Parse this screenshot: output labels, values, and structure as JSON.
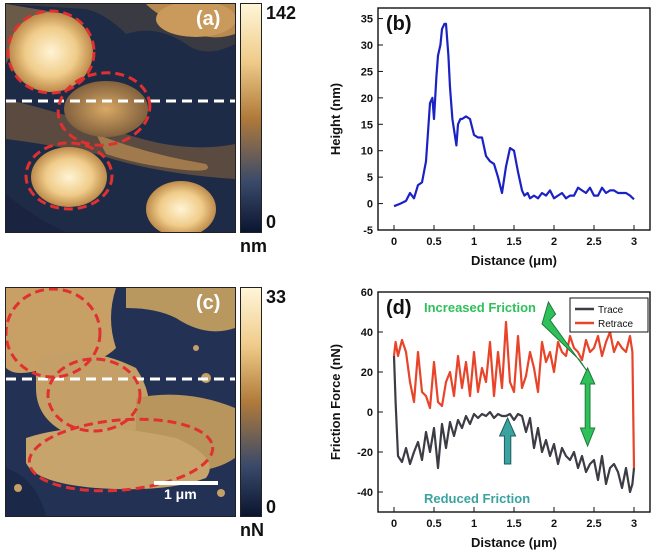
{
  "panel_a": {
    "label": "(a)",
    "colorbar_max": "142",
    "colorbar_min": "0",
    "colorbar_unit": "nm"
  },
  "panel_c": {
    "label": "(c)",
    "colorbar_max": "33",
    "colorbar_min": "0",
    "colorbar_unit": "nN",
    "scalebar": "1 μm"
  },
  "colors": {
    "colormap_low": "#0b1530",
    "colormap_mid": "#b07a3a",
    "colormap_high": "#fff5d8",
    "circle": "#e03030",
    "dashed_line": "#ffffff",
    "height_line": "#1a22c4",
    "trace": "#3c3c44",
    "retrace": "#e8442a",
    "arrow_green": "#2ec15a",
    "arrow_teal": "#3aa3a0"
  },
  "chart_data": [
    {
      "type": "line",
      "panel_label": "(b)",
      "xlabel": "Distance (μm)",
      "ylabel": "Height (nm)",
      "xlim": [
        -0.2,
        3.2
      ],
      "ylim": [
        -5,
        37
      ],
      "xticks": [
        "0",
        "0.5",
        "1",
        "1.5",
        "2",
        "2.5",
        "3"
      ],
      "yticks": [
        "-5",
        "0",
        "5",
        "10",
        "15",
        "20",
        "25",
        "30",
        "35"
      ],
      "series": [
        {
          "x": [
            0,
            0.08,
            0.15,
            0.2,
            0.25,
            0.3,
            0.35,
            0.4,
            0.45,
            0.48,
            0.5,
            0.53,
            0.55,
            0.58,
            0.6,
            0.63,
            0.65,
            0.68,
            0.7,
            0.73,
            0.75,
            0.78,
            0.8,
            0.83,
            0.85,
            0.9,
            0.95,
            1.0,
            1.05,
            1.1,
            1.15,
            1.2,
            1.25,
            1.3,
            1.35,
            1.4,
            1.45,
            1.5,
            1.55,
            1.6,
            1.63,
            1.67,
            1.7,
            1.75,
            1.8,
            1.85,
            1.9,
            1.95,
            2.0,
            2.05,
            2.1,
            2.15,
            2.2,
            2.25,
            2.3,
            2.35,
            2.4,
            2.45,
            2.5,
            2.55,
            2.6,
            2.65,
            2.7,
            2.75,
            2.8,
            2.85,
            2.9,
            2.95,
            3.0
          ],
          "y": [
            -0.5,
            0,
            0.5,
            2,
            1,
            3.5,
            4,
            8,
            19,
            20,
            16,
            24,
            28,
            30,
            33,
            34,
            34,
            28,
            22,
            16,
            14,
            11,
            15,
            16,
            16,
            16.5,
            16,
            13,
            12.5,
            12.5,
            9,
            8,
            7.5,
            5,
            2,
            7,
            10.5,
            10,
            6,
            2.5,
            1.5,
            2,
            1,
            1.5,
            1,
            2,
            1.5,
            2.5,
            1,
            1.5,
            2,
            1,
            1.5,
            1.5,
            3,
            2.5,
            2,
            3,
            1.5,
            1.5,
            3,
            2,
            2.5,
            2.5,
            2,
            2,
            2,
            1.5,
            0.8
          ]
        }
      ]
    },
    {
      "type": "line",
      "panel_label": "(d)",
      "xlabel": "Distance (μm)",
      "ylabel": "Friction Force (nN)",
      "xlim": [
        -0.2,
        3.2
      ],
      "ylim": [
        -50,
        60
      ],
      "xticks": [
        "0",
        "0.5",
        "1",
        "1.5",
        "2",
        "2.5",
        "3"
      ],
      "yticks": [
        "-40",
        "-20",
        "0",
        "20",
        "40",
        "60"
      ],
      "legend": "top-right",
      "annotations": [
        "Increased Friction",
        "Reduced Friction"
      ],
      "series": [
        {
          "name": "Trace",
          "x": [
            0,
            0.02,
            0.05,
            0.1,
            0.15,
            0.2,
            0.25,
            0.3,
            0.35,
            0.4,
            0.45,
            0.5,
            0.55,
            0.6,
            0.65,
            0.7,
            0.75,
            0.8,
            0.85,
            0.9,
            0.95,
            1.0,
            1.05,
            1.1,
            1.15,
            1.2,
            1.25,
            1.3,
            1.35,
            1.4,
            1.45,
            1.5,
            1.55,
            1.6,
            1.65,
            1.7,
            1.75,
            1.8,
            1.85,
            1.9,
            1.95,
            2.0,
            2.05,
            2.1,
            2.15,
            2.2,
            2.25,
            2.3,
            2.35,
            2.4,
            2.45,
            2.5,
            2.55,
            2.6,
            2.65,
            2.7,
            2.75,
            2.8,
            2.85,
            2.9,
            2.95,
            2.98,
            3.0
          ],
          "y": [
            28,
            5,
            -22,
            -25,
            -18,
            -26,
            -20,
            -15,
            -24,
            -10,
            -20,
            -8,
            -28,
            -6,
            -18,
            -5,
            -12,
            -4,
            -8,
            -2,
            -6,
            -1,
            -3,
            -1,
            -2,
            0,
            -3,
            -1,
            -2,
            -2,
            -1,
            -4,
            -1,
            -2,
            -10,
            -3,
            -18,
            -8,
            -20,
            -14,
            -22,
            -16,
            -26,
            -18,
            -22,
            -24,
            -20,
            -28,
            -22,
            -30,
            -26,
            -24,
            -34,
            -22,
            -36,
            -28,
            -26,
            -30,
            -38,
            -28,
            -40,
            -36,
            -28
          ]
        },
        {
          "name": "Retrace",
          "x": [
            0,
            0.02,
            0.05,
            0.1,
            0.15,
            0.2,
            0.25,
            0.3,
            0.35,
            0.4,
            0.45,
            0.5,
            0.55,
            0.6,
            0.65,
            0.7,
            0.75,
            0.8,
            0.85,
            0.9,
            0.95,
            1.0,
            1.05,
            1.1,
            1.15,
            1.2,
            1.25,
            1.3,
            1.35,
            1.4,
            1.45,
            1.5,
            1.55,
            1.6,
            1.65,
            1.7,
            1.75,
            1.8,
            1.85,
            1.9,
            1.95,
            2.0,
            2.05,
            2.1,
            2.15,
            2.2,
            2.25,
            2.3,
            2.35,
            2.4,
            2.45,
            2.5,
            2.55,
            2.6,
            2.65,
            2.7,
            2.75,
            2.8,
            2.85,
            2.9,
            2.95,
            2.98,
            3.0
          ],
          "y": [
            28,
            35,
            28,
            36,
            30,
            15,
            5,
            30,
            10,
            8,
            2,
            25,
            5,
            3,
            15,
            20,
            8,
            28,
            12,
            25,
            8,
            30,
            10,
            22,
            15,
            35,
            8,
            30,
            12,
            45,
            15,
            10,
            38,
            12,
            18,
            30,
            22,
            10,
            35,
            25,
            30,
            20,
            35,
            30,
            28,
            38,
            32,
            30,
            26,
            36,
            30,
            32,
            38,
            28,
            35,
            40,
            30,
            35,
            32,
            30,
            38,
            30,
            -28
          ]
        }
      ]
    }
  ]
}
